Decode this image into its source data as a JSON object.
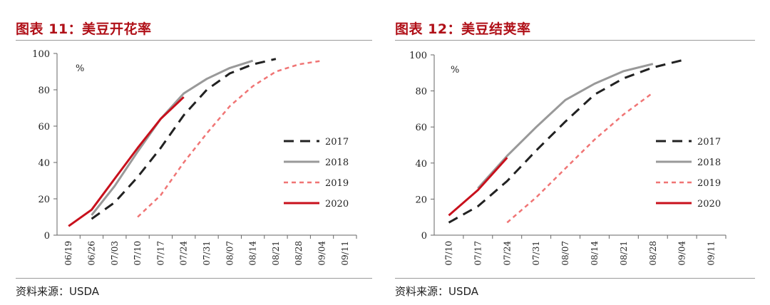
{
  "source_label": "资料来源：USDA",
  "legend_labels": [
    "2017",
    "2018",
    "2019",
    "2020"
  ],
  "series_colors": {
    "2017": "#222222",
    "2018": "#999999",
    "2019": "#f07575",
    "2020": "#c8101c"
  },
  "chart_data": [
    {
      "title": "图表 11：美豆开花率",
      "type": "line",
      "unit_label": "%",
      "ylim": [
        0,
        100
      ],
      "y_ticks": [
        "0",
        "20",
        "40",
        "60",
        "80",
        "100"
      ],
      "x_ticks": [
        "06/19",
        "06/26",
        "07/03",
        "07/10",
        "07/17",
        "07/24",
        "07/31",
        "08/07",
        "08/14",
        "08/21",
        "08/28",
        "09/04",
        "09/11"
      ],
      "legend_position": "right",
      "series": [
        {
          "name": "2017",
          "style": "dash",
          "x": [
            "06/26",
            "07/03",
            "07/10",
            "07/17",
            "07/24",
            "07/31",
            "08/07",
            "08/14",
            "08/21"
          ],
          "values": [
            9,
            18,
            32,
            48,
            66,
            80,
            89,
            94,
            97
          ]
        },
        {
          "name": "2018",
          "style": "solid",
          "x": [
            "06/26",
            "07/03",
            "07/10",
            "07/17",
            "07/24",
            "07/31",
            "08/07",
            "08/14"
          ],
          "values": [
            11,
            27,
            46,
            64,
            78,
            86,
            92,
            96
          ]
        },
        {
          "name": "2019",
          "style": "dot",
          "x": [
            "07/10",
            "07/17",
            "07/24",
            "07/31",
            "08/07",
            "08/14",
            "08/21",
            "08/28",
            "09/04"
          ],
          "values": [
            10,
            22,
            40,
            56,
            71,
            82,
            90,
            94,
            96
          ]
        },
        {
          "name": "2020",
          "style": "solid",
          "x": [
            "06/19",
            "06/26",
            "07/03",
            "07/10",
            "07/17",
            "07/24"
          ],
          "values": [
            5,
            14,
            31,
            48,
            64,
            76
          ]
        }
      ]
    },
    {
      "title": "图表 12：美豆结荚率",
      "type": "line",
      "unit_label": "%",
      "ylim": [
        0,
        100
      ],
      "y_ticks": [
        "0",
        "20",
        "40",
        "60",
        "80",
        "100"
      ],
      "x_ticks": [
        "07/10",
        "07/17",
        "07/24",
        "07/31",
        "08/07",
        "08/14",
        "08/21",
        "08/28",
        "09/04",
        "09/11"
      ],
      "legend_position": "right",
      "series": [
        {
          "name": "2017",
          "style": "dash",
          "x": [
            "07/10",
            "07/17",
            "07/24",
            "07/31",
            "08/07",
            "08/14",
            "08/21",
            "08/28",
            "09/04"
          ],
          "values": [
            7,
            16,
            30,
            47,
            63,
            78,
            87,
            93,
            97
          ]
        },
        {
          "name": "2018",
          "style": "solid",
          "x": [
            "07/17",
            "07/24",
            "07/31",
            "08/07",
            "08/14",
            "08/21",
            "08/28"
          ],
          "values": [
            26,
            44,
            60,
            75,
            84,
            91,
            95
          ]
        },
        {
          "name": "2019",
          "style": "dot",
          "x": [
            "07/24",
            "07/31",
            "08/07",
            "08/14",
            "08/21",
            "08/28"
          ],
          "values": [
            7,
            21,
            37,
            53,
            67,
            79
          ]
        },
        {
          "name": "2020",
          "style": "solid",
          "x": [
            "07/10",
            "07/17",
            "07/24"
          ],
          "values": [
            11,
            25,
            43
          ]
        }
      ]
    }
  ]
}
